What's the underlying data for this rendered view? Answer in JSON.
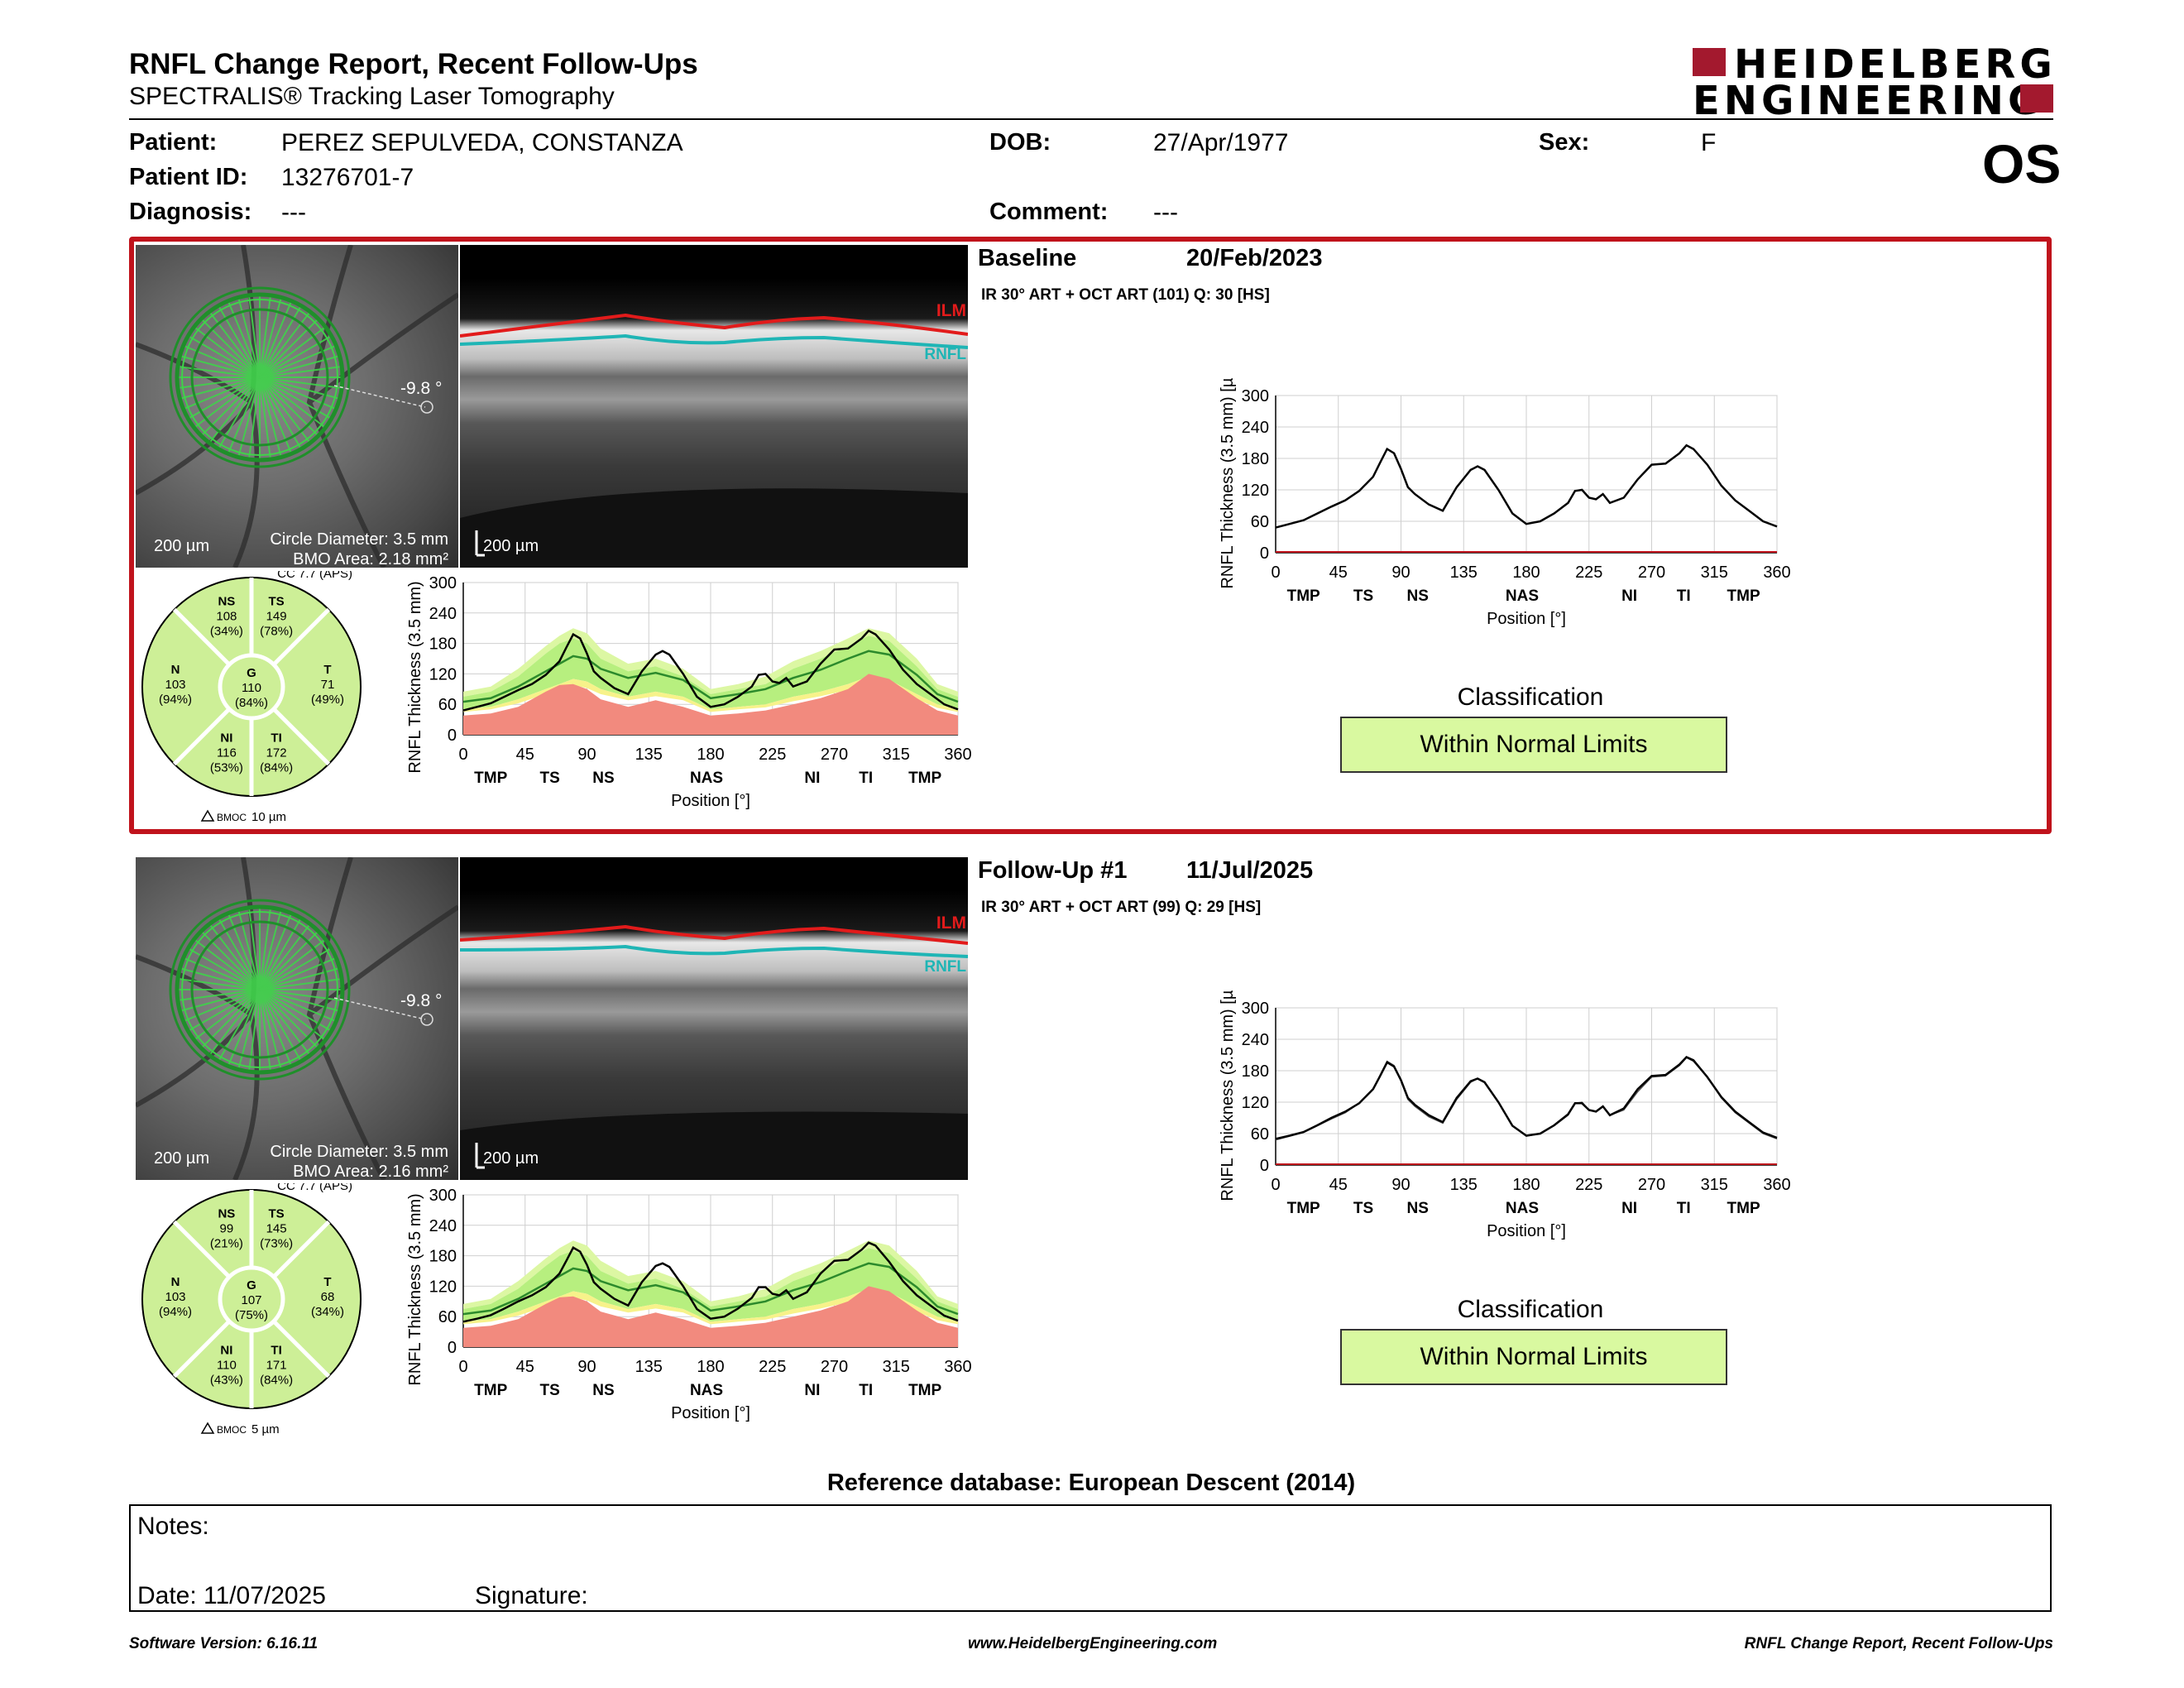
{
  "header": {
    "title": "RNFL Change Report, Recent Follow-Ups",
    "subtitle": "SPECTRALIS® Tracking Laser Tomography",
    "logo_line1": "HEIDELBERG",
    "logo_line2": "ENGINEERING",
    "eye": "OS"
  },
  "patient": {
    "patient_label": "Patient:",
    "patient_value": "PEREZ SEPULVEDA, CONSTANZA",
    "dob_label": "DOB:",
    "dob_value": "27/Apr/1977",
    "sex_label": "Sex:",
    "sex_value": "F",
    "id_label": "Patient ID:",
    "id_value": "13276701-7",
    "diagnosis_label": "Diagnosis:",
    "diagnosis_value": "---",
    "comment_label": "Comment:",
    "comment_value": "---"
  },
  "labels": {
    "ilm": "ILM",
    "rnfl": "RNFL",
    "angle": "-9.8 °",
    "scale_200": "200 µm",
    "circle_diameter": "Circle Diameter: 3.5 mm",
    "cc": "CC 7.7 (APS)",
    "classification_title": "Classification",
    "bmoc_prefix": "BMOC"
  },
  "exams": [
    {
      "title": "Baseline",
      "date": "20/Feb/2023",
      "scan_info": "IR 30° ART + OCT ART (101) Q: 30 [HS]",
      "bmo_area": "BMO Area: 2.18 mm²",
      "bmoc": "10 µm",
      "classification": "Within Normal Limits",
      "sectors": {
        "NS": {
          "label": "NS",
          "value": "108",
          "pct": "(34%)"
        },
        "TS": {
          "label": "TS",
          "value": "149",
          "pct": "(78%)"
        },
        "N": {
          "label": "N",
          "value": "103",
          "pct": "(94%)"
        },
        "G": {
          "label": "G",
          "value": "110",
          "pct": "(84%)"
        },
        "T": {
          "label": "T",
          "value": "71",
          "pct": "(49%)"
        },
        "NI": {
          "label": "NI",
          "value": "116",
          "pct": "(53%)"
        },
        "TI": {
          "label": "TI",
          "value": "172",
          "pct": "(84%)"
        }
      }
    },
    {
      "title": "Follow-Up #1",
      "date": "11/Jul/2025",
      "scan_info": "IR 30° ART + OCT ART (99) Q: 29 [HS]",
      "bmo_area": "BMO Area: 2.16 mm²",
      "bmoc": "5 µm",
      "classification": "Within Normal Limits",
      "sectors": {
        "NS": {
          "label": "NS",
          "value": "99",
          "pct": "(21%)"
        },
        "TS": {
          "label": "TS",
          "value": "145",
          "pct": "(73%)"
        },
        "N": {
          "label": "N",
          "value": "103",
          "pct": "(94%)"
        },
        "G": {
          "label": "G",
          "value": "107",
          "pct": "(75%)"
        },
        "T": {
          "label": "T",
          "value": "68",
          "pct": "(34%)"
        },
        "NI": {
          "label": "NI",
          "value": "110",
          "pct": "(43%)"
        },
        "TI": {
          "label": "TI",
          "value": "171",
          "pct": "(84%)"
        }
      }
    }
  ],
  "chart_data": [
    {
      "type": "line",
      "ylabel": "RNFL Thickness (3.5 mm) [µm]",
      "xlabel": "Position [°]",
      "xlim": [
        0,
        360
      ],
      "ylim": [
        0,
        300
      ],
      "xticks": [
        0,
        45,
        90,
        135,
        180,
        225,
        270,
        315,
        360
      ],
      "yticks": [
        0,
        60,
        120,
        180,
        240,
        300
      ],
      "sector_labels": [
        {
          "label": "TMP",
          "x": 20
        },
        {
          "label": "TS",
          "x": 63
        },
        {
          "label": "NS",
          "x": 102
        },
        {
          "label": "NAS",
          "x": 177
        },
        {
          "label": "NI",
          "x": 254
        },
        {
          "label": "TI",
          "x": 293
        },
        {
          "label": "TMP",
          "x": 336
        }
      ],
      "series": [
        {
          "x": [
            0,
            10,
            20,
            30,
            40,
            50,
            60,
            70,
            75,
            80,
            85,
            90,
            95,
            100,
            110,
            120,
            130,
            140,
            145,
            150,
            160,
            170,
            180,
            190,
            200,
            210,
            215,
            220,
            225,
            230,
            235,
            240,
            250,
            260,
            270,
            280,
            290,
            295,
            300,
            310,
            320,
            330,
            340,
            350,
            360
          ],
          "baseline": [
            48,
            55,
            62,
            75,
            88,
            100,
            118,
            145,
            172,
            198,
            190,
            160,
            125,
            112,
            92,
            80,
            125,
            158,
            165,
            158,
            120,
            75,
            55,
            60,
            75,
            95,
            118,
            120,
            105,
            102,
            112,
            95,
            105,
            140,
            168,
            170,
            190,
            205,
            198,
            168,
            128,
            100,
            80,
            60,
            50
          ],
          "followup": [
            50,
            56,
            63,
            76,
            90,
            102,
            118,
            145,
            170,
            196,
            188,
            162,
            128,
            115,
            95,
            82,
            128,
            160,
            165,
            158,
            120,
            75,
            56,
            60,
            76,
            97,
            118,
            118,
            105,
            102,
            112,
            95,
            108,
            145,
            170,
            172,
            192,
            206,
            200,
            168,
            130,
            102,
            82,
            62,
            52
          ]
        }
      ],
      "normative": {
        "x": [
          0,
          20,
          40,
          60,
          70,
          80,
          90,
          100,
          120,
          140,
          160,
          180,
          200,
          220,
          240,
          260,
          280,
          295,
          310,
          330,
          345,
          360
        ],
        "p99": [
          85,
          95,
          130,
          175,
          195,
          210,
          200,
          170,
          140,
          150,
          130,
          90,
          100,
          115,
          145,
          165,
          190,
          210,
          200,
          150,
          100,
          85
        ],
        "p95": [
          75,
          85,
          115,
          160,
          180,
          190,
          180,
          150,
          125,
          135,
          115,
          80,
          90,
          100,
          130,
          150,
          175,
          195,
          185,
          135,
          90,
          75
        ],
        "p5": [
          50,
          55,
          70,
          90,
          100,
          110,
          105,
          90,
          75,
          85,
          75,
          50,
          55,
          60,
          75,
          85,
          100,
          115,
          108,
          80,
          60,
          50
        ],
        "p1": [
          45,
          50,
          62,
          80,
          90,
          98,
          92,
          80,
          68,
          76,
          68,
          45,
          50,
          54,
          66,
          76,
          88,
          102,
          95,
          70,
          53,
          45
        ],
        "mean": [
          65,
          72,
          95,
          125,
          140,
          155,
          150,
          130,
          112,
          122,
          108,
          72,
          80,
          90,
          112,
          128,
          150,
          165,
          158,
          118,
          80,
          65
        ],
        "lower_zone": [
          38,
          42,
          55,
          85,
          98,
          100,
          90,
          70,
          55,
          68,
          55,
          38,
          42,
          48,
          60,
          72,
          90,
          120,
          110,
          72,
          48,
          38
        ]
      }
    }
  ],
  "reference_db": "Reference database: European Descent (2014)",
  "notes": {
    "notes_label": "Notes:",
    "date_label": "Date: 11/07/2025",
    "signature_label": "Signature:"
  },
  "footer": {
    "software": "Software Version: 6.16.11",
    "website": "www.HeidelbergEngineering.com",
    "report": "RNFL Change Report, Recent Follow-Ups"
  },
  "colors": {
    "accent_red": "#c0131c",
    "logo_red": "#a3192e",
    "wnl_green": "#d9f9a0",
    "zone_green": "#b7ef7f",
    "zone_lightgreen": "#dcf7a3",
    "zone_yellow": "#f7f28a",
    "zone_red": "#f28a7e",
    "sector_green": "#cdef97"
  }
}
